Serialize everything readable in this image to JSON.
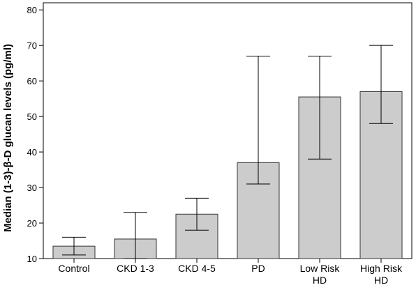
{
  "chart_data": {
    "type": "bar",
    "title": "",
    "xlabel": "",
    "ylabel": "Median (1-3)-β-D glucan levels (pg/ml)",
    "ylim": [
      10,
      82
    ],
    "yticks": [
      10,
      20,
      30,
      40,
      50,
      60,
      70,
      80
    ],
    "grid": false,
    "legend": "none",
    "categories": [
      [
        "Control"
      ],
      [
        "CKD 1-3"
      ],
      [
        "CKD 4-5"
      ],
      [
        "PD"
      ],
      [
        "Low Risk",
        "HD"
      ],
      [
        "High Risk",
        "HD"
      ]
    ],
    "values": [
      13.5,
      15.5,
      22.5,
      37,
      55.5,
      57
    ],
    "error_low": [
      11,
      10,
      18,
      31,
      38,
      48
    ],
    "error_high": [
      16,
      23,
      27,
      67,
      67,
      70
    ],
    "colors": {
      "bar_fill": "#cccccc",
      "bar_stroke": "#333333",
      "axis": "#000000"
    }
  }
}
